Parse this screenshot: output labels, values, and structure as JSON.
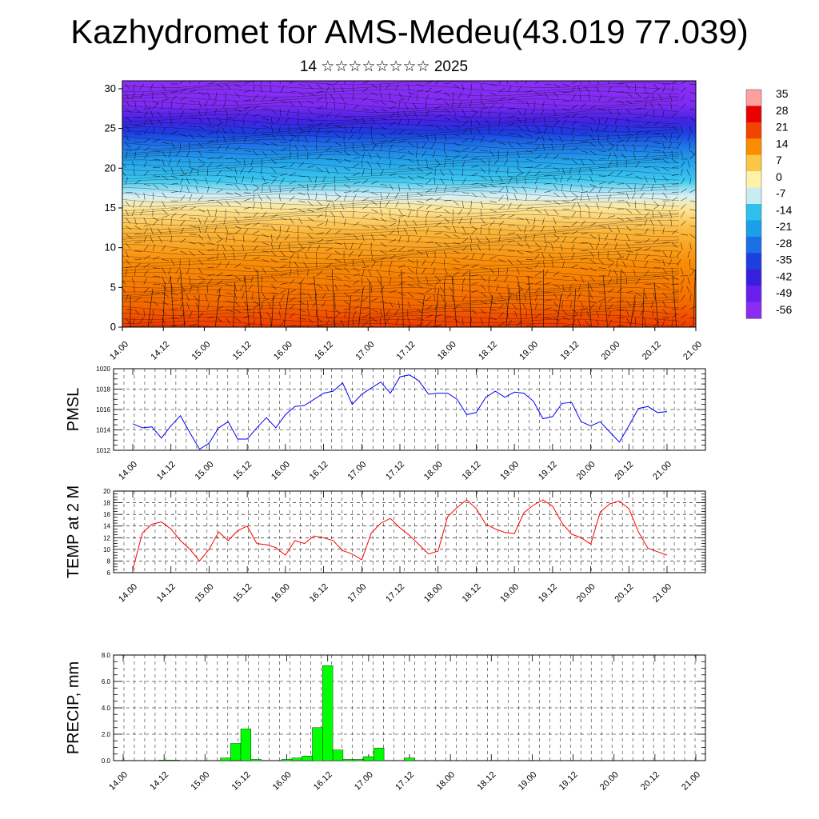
{
  "header": {
    "title": "Kazhydromet for AMS-Medeu(43.019 77.039)",
    "subtitle": "14 ☆☆☆☆☆☆☆☆ 2025"
  },
  "x_ticks": [
    "14.00",
    "14.12",
    "15.00",
    "15.12",
    "16.00",
    "16.12",
    "17.00",
    "17.12",
    "18.00",
    "18.12",
    "19.00",
    "19.12",
    "20.00",
    "20.12",
    "21.00"
  ],
  "chart_data": [
    {
      "type": "heatmap",
      "name": "cross-section",
      "yticks": [
        0,
        5,
        10,
        15,
        20,
        25,
        30
      ],
      "ylim": [
        0,
        31
      ],
      "colorbar": {
        "labels": [
          "35",
          "28",
          "21",
          "14",
          "7",
          "0",
          "-7",
          "-14",
          "-21",
          "-28",
          "-35",
          "-42",
          "-49",
          "-56"
        ],
        "colors": [
          "#ff9f9f",
          "#e80000",
          "#f14400",
          "#fa8e00",
          "#fbc645",
          "#fff2a8",
          "#c9ecf3",
          "#2ec0ec",
          "#1aa0e8",
          "#1c6fe6",
          "#1c3fe0",
          "#3a1ee0",
          "#6a1ff0",
          "#8a2cf2"
        ]
      }
    },
    {
      "type": "line",
      "ylabel": "PMSL",
      "ylim": [
        1012,
        1020
      ],
      "yticks": [
        1012,
        1014,
        1016,
        1018,
        1020
      ],
      "color": "#0000ff",
      "values": [
        1014.6,
        1014.2,
        1014.3,
        1013.2,
        1014.4,
        1015.4,
        1013.7,
        1012.1,
        1012.7,
        1014.2,
        1014.8,
        1013.1,
        1013.1,
        1014.2,
        1015.2,
        1014.2,
        1015.5,
        1016.3,
        1016.4,
        1017.0,
        1017.6,
        1017.8,
        1018.6,
        1016.5,
        1017.5,
        1018.1,
        1018.7,
        1017.6,
        1019.2,
        1019.4,
        1018.8,
        1017.5,
        1017.6,
        1017.6,
        1017.0,
        1015.5,
        1015.7,
        1017.2,
        1017.8,
        1017.2,
        1017.7,
        1017.6,
        1016.8,
        1015.1,
        1015.3,
        1016.6,
        1016.7,
        1014.8,
        1014.4,
        1014.8,
        1013.8,
        1012.8,
        1014.4,
        1016.1,
        1016.3,
        1015.7,
        1015.8
      ]
    },
    {
      "type": "line",
      "ylabel": "TEMP at 2 M",
      "ylim": [
        6,
        20
      ],
      "yticks": [
        6,
        8,
        10,
        12,
        14,
        16,
        18,
        20
      ],
      "color": "#ff0000",
      "values": [
        6.5,
        12.8,
        14.3,
        14.7,
        13.5,
        11.5,
        10.0,
        8.0,
        10.0,
        13.0,
        11.5,
        13.2,
        14.0,
        11.0,
        10.8,
        10.3,
        9.0,
        11.5,
        11.0,
        12.3,
        12.0,
        11.5,
        9.8,
        9.2,
        8.2,
        12.8,
        14.5,
        15.3,
        13.7,
        12.4,
        10.8,
        9.2,
        9.7,
        15.6,
        17.2,
        18.5,
        17.0,
        14.3,
        13.5,
        12.9,
        12.7,
        16.3,
        17.6,
        18.5,
        17.4,
        14.5,
        12.6,
        12.0,
        10.9,
        16.4,
        17.8,
        18.3,
        17.0,
        13.0,
        10.2,
        9.6,
        9.0
      ]
    },
    {
      "type": "bar",
      "ylabel": "PRECIP, mm",
      "ylim": [
        0,
        8
      ],
      "yticks": [
        "0.0",
        "2.0",
        "4.0",
        "6.0",
        "8.0"
      ],
      "color": "#00ff00",
      "values": [
        0,
        0,
        0,
        0,
        0.05,
        0.05,
        0,
        0,
        0,
        0,
        0.2,
        1.3,
        2.4,
        0.1,
        0,
        0,
        0.1,
        0.2,
        0.35,
        2.5,
        7.2,
        0.8,
        0.1,
        0.1,
        0.3,
        0.95,
        0,
        0,
        0.2,
        0,
        0,
        0,
        0,
        0,
        0,
        0,
        0,
        0,
        0,
        0,
        0,
        0,
        0,
        0,
        0,
        0,
        0,
        0,
        0,
        0,
        0,
        0,
        0,
        0,
        0,
        0,
        0
      ]
    }
  ]
}
